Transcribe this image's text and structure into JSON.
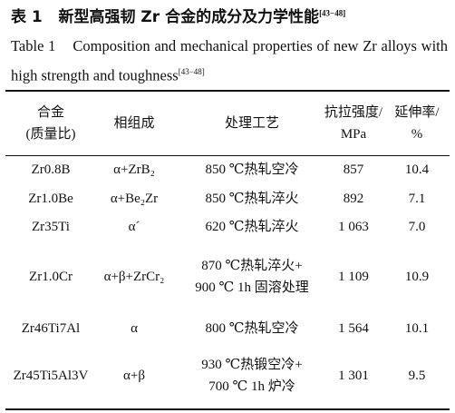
{
  "caption": {
    "label": "表 1",
    "title": "新型高强韧 Zr 合金的成分及力学性能",
    "ref": "[43−48]"
  },
  "caption_en": {
    "label": "Table 1",
    "title": "Composition and mechanical properties of new Zr alloys with high strength and toughness",
    "ref": "[43−48]"
  },
  "table": {
    "header": [
      [
        "合金",
        "(质量比)"
      ],
      [
        "相组成"
      ],
      [
        "处理工艺"
      ],
      [
        "抗拉强度/",
        "MPa"
      ],
      [
        "延伸率/",
        "%"
      ]
    ],
    "rows": [
      [
        [
          "Zr0.8B"
        ],
        [
          "α+ZrB₂"
        ],
        [
          "850 ℃热轧空冷"
        ],
        [
          "857"
        ],
        [
          "10.4"
        ]
      ],
      [
        [
          "Zr1.0Be"
        ],
        [
          "α+Be₂Zr"
        ],
        [
          "850 ℃热轧淬火"
        ],
        [
          "892"
        ],
        [
          "7.1"
        ]
      ],
      [
        [
          "Zr35Ti"
        ],
        [
          "α´"
        ],
        [
          "620 ℃热轧淬火"
        ],
        [
          "1 063"
        ],
        [
          "7.0"
        ]
      ],
      [
        [
          "Zr1.0Cr"
        ],
        [
          "α+β+ZrCr₂"
        ],
        [
          "870 ℃热轧淬火+",
          "900 ℃ 1h 固溶处理"
        ],
        [
          "1 109"
        ],
        [
          "10.9"
        ]
      ],
      [
        [
          "Zr46Ti7Al"
        ],
        [
          "α"
        ],
        [
          "800 ℃热轧空冷"
        ],
        [
          "1 564"
        ],
        [
          "10.1"
        ]
      ],
      [
        [
          "Zr45Ti5Al3V"
        ],
        [
          "α+β"
        ],
        [
          "930 ℃热锻空冷+",
          "700 ℃ 1h 炉冷"
        ],
        [
          "1 301"
        ],
        [
          "9.5"
        ]
      ]
    ]
  }
}
